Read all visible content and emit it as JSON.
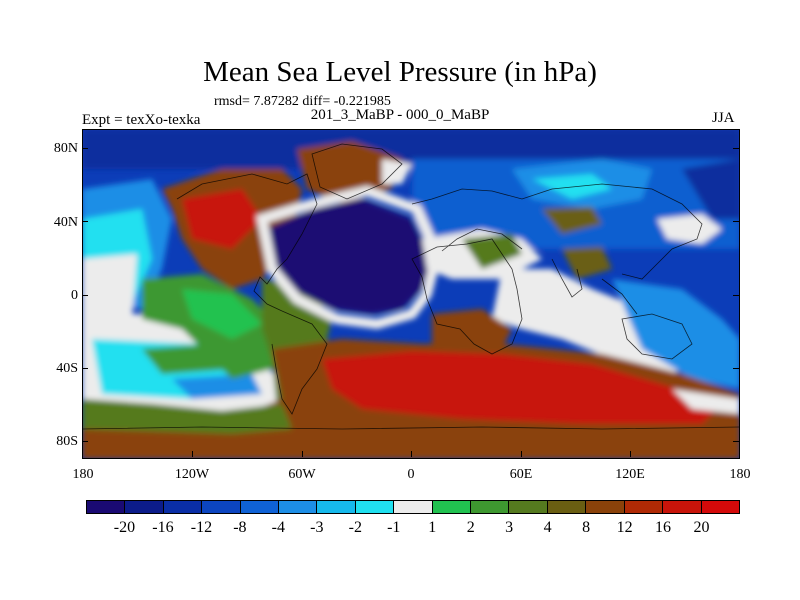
{
  "title": "Mean Sea Level Pressure (in hPa)",
  "stats": "rmsd= 7.87282 diff= -0.221985",
  "experiment": "Expt = texXo-texka",
  "comparison": "201_3_MaBP - 000_0_MaBP",
  "season": "JJA",
  "y_ticks": [
    "80N",
    "40N",
    "0",
    "40S",
    "80S"
  ],
  "x_ticks": [
    "180",
    "120W",
    "60W",
    "0",
    "60E",
    "120E",
    "180"
  ],
  "colorbar": {
    "colors": [
      "#1a0a73",
      "#0c1c8a",
      "#0a2ea6",
      "#0c45c0",
      "#0f62d6",
      "#1d8ee6",
      "#16b9ec",
      "#20e0f0",
      "#ececec",
      "#21c250",
      "#3e9830",
      "#557a1f",
      "#6a5e12",
      "#8a420a",
      "#b02a05",
      "#c8140a",
      "#d40a0a"
    ],
    "labels": [
      "-20",
      "-16",
      "-12",
      "-8",
      "-4",
      "-3",
      "-2",
      "-1",
      "1",
      "2",
      "3",
      "4",
      "8",
      "12",
      "16",
      "20"
    ]
  }
}
